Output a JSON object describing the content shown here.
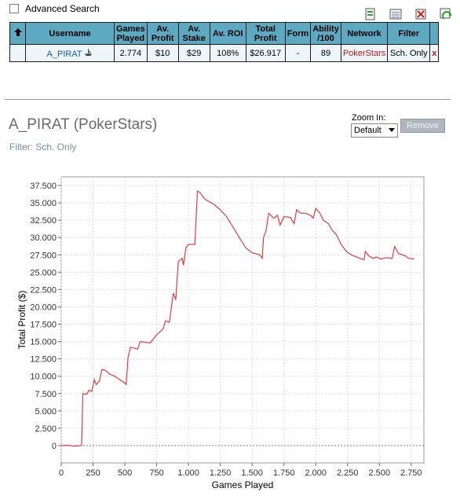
{
  "advanced_search": {
    "label": "Advanced Search",
    "checked": false
  },
  "toolbar": {
    "icons": [
      "export-icon",
      "report-icon",
      "delete-icon",
      "refresh-icon"
    ]
  },
  "table": {
    "headers": [
      "Username",
      "Games Played",
      "Av. Profit",
      "Av. Stake",
      "Av. ROI",
      "Total Profit",
      "Form",
      "Ability /100",
      "Network",
      "Filter"
    ],
    "row": {
      "username": "A_PIRAT",
      "games_played": "2.774",
      "av_profit": "$10",
      "av_stake": "$29",
      "av_roi": "108%",
      "total_profit": "$26.917",
      "form": "-",
      "ability": "89",
      "network": "PokerStars",
      "filter": "Sch. Only",
      "remove": "x"
    }
  },
  "player_title": "A_PIRAT (PokerStars)",
  "filter_text": "Filter: Sch. Only",
  "zoom": {
    "label": "Zoom In:",
    "selected": "Default"
  },
  "remove_button": "Remove",
  "colors": {
    "header_bg": "#5ea9c2",
    "line": "#e03c3c",
    "zero_line": "#6b6bd6"
  },
  "chart_data": {
    "type": "line",
    "xlabel": "Games Played",
    "ylabel": "Total Profit ($)",
    "xlim": [
      0,
      2850
    ],
    "ylim": [
      -2500,
      38750
    ],
    "x_ticks": [
      0,
      250,
      500,
      750,
      1000,
      1250,
      1500,
      1750,
      2000,
      2250,
      2500,
      2750
    ],
    "x_tick_labels": [
      "0",
      "250",
      "500",
      "750",
      "1.000",
      "1.250",
      "1.500",
      "1.750",
      "2.000",
      "2.250",
      "2.500",
      "2.750"
    ],
    "y_ticks": [
      0,
      2500,
      5000,
      7500,
      10000,
      12500,
      15000,
      17500,
      20000,
      22500,
      25000,
      27500,
      30000,
      32500,
      35000,
      37500
    ],
    "y_tick_labels": [
      "0",
      "2.500",
      "5.000",
      "7.500",
      "10.000",
      "12.500",
      "15.000",
      "17.500",
      "20.000",
      "22.500",
      "25.000",
      "27.500",
      "30.000",
      "32.500",
      "35.000",
      "37.500"
    ],
    "grid": true,
    "series": [
      {
        "points": [
          [
            0,
            0
          ],
          [
            60,
            50
          ],
          [
            100,
            -100
          ],
          [
            160,
            0
          ],
          [
            170,
            7500
          ],
          [
            200,
            7400
          ],
          [
            220,
            8000
          ],
          [
            240,
            7800
          ],
          [
            260,
            9500
          ],
          [
            275,
            8800
          ],
          [
            300,
            9300
          ],
          [
            320,
            11000
          ],
          [
            350,
            10800
          ],
          [
            380,
            10300
          ],
          [
            420,
            10000
          ],
          [
            460,
            9500
          ],
          [
            500,
            9000
          ],
          [
            510,
            8800
          ],
          [
            525,
            12700
          ],
          [
            545,
            14200
          ],
          [
            600,
            13900
          ],
          [
            620,
            15000
          ],
          [
            700,
            14800
          ],
          [
            750,
            16000
          ],
          [
            800,
            16800
          ],
          [
            820,
            18000
          ],
          [
            850,
            17800
          ],
          [
            880,
            22000
          ],
          [
            900,
            21000
          ],
          [
            920,
            26500
          ],
          [
            950,
            27000
          ],
          [
            960,
            26000
          ],
          [
            980,
            28500
          ],
          [
            1000,
            29000
          ],
          [
            1050,
            29000
          ],
          [
            1070,
            36700
          ],
          [
            1090,
            36500
          ],
          [
            1130,
            35500
          ],
          [
            1200,
            34800
          ],
          [
            1250,
            34000
          ],
          [
            1300,
            33000
          ],
          [
            1350,
            31500
          ],
          [
            1400,
            30000
          ],
          [
            1450,
            28500
          ],
          [
            1500,
            27800
          ],
          [
            1560,
            27500
          ],
          [
            1580,
            27000
          ],
          [
            1590,
            30000
          ],
          [
            1610,
            31000
          ],
          [
            1630,
            33500
          ],
          [
            1670,
            32800
          ],
          [
            1700,
            33200
          ],
          [
            1720,
            31800
          ],
          [
            1750,
            33000
          ],
          [
            1800,
            32900
          ],
          [
            1830,
            32000
          ],
          [
            1850,
            34000
          ],
          [
            1880,
            33500
          ],
          [
            1920,
            33500
          ],
          [
            1960,
            33200
          ],
          [
            1980,
            32800
          ],
          [
            2000,
            34200
          ],
          [
            2030,
            33600
          ],
          [
            2060,
            32500
          ],
          [
            2100,
            32000
          ],
          [
            2130,
            31000
          ],
          [
            2160,
            30500
          ],
          [
            2200,
            29000
          ],
          [
            2240,
            28000
          ],
          [
            2280,
            27500
          ],
          [
            2320,
            27200
          ],
          [
            2360,
            26900
          ],
          [
            2380,
            26800
          ],
          [
            2390,
            28000
          ],
          [
            2420,
            27300
          ],
          [
            2450,
            27000
          ],
          [
            2480,
            27200
          ],
          [
            2510,
            26900
          ],
          [
            2550,
            27100
          ],
          [
            2600,
            27000
          ],
          [
            2620,
            28700
          ],
          [
            2650,
            27700
          ],
          [
            2700,
            27400
          ],
          [
            2730,
            27000
          ],
          [
            2774,
            26917
          ]
        ]
      }
    ]
  }
}
